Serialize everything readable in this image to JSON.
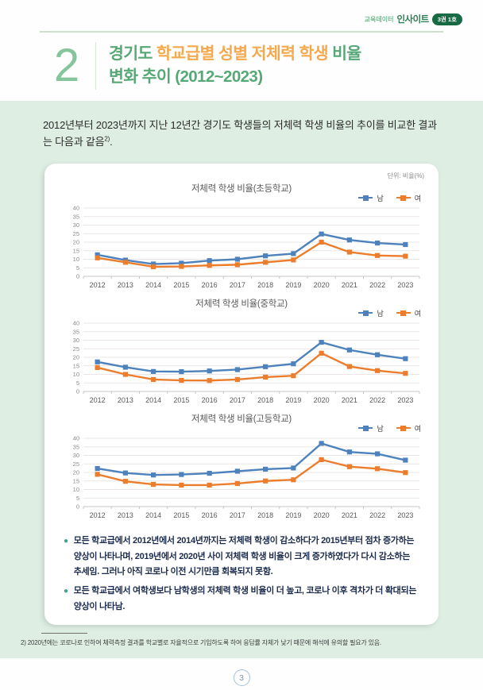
{
  "header": {
    "brand_small": "교육데이터",
    "brand_bold": "인사이트",
    "badge": "3권 1호",
    "section_number": "2",
    "title": {
      "green1": "경기도 ",
      "orange": "학교급별 성별 저체력 학생",
      "green2": " 비율",
      "line2": "변화 추이 (2012~2023)"
    }
  },
  "intro": {
    "text": "2012년부터 2023년까지 지난 12년간 경기도 학생들의 저체력 학생 비율의 추이를 비교한 결과는 다음과 같음",
    "ref": "2)",
    "period": "."
  },
  "card": {
    "unit_label": "단위: 비율(%)"
  },
  "colors": {
    "male_blue": "#4d82bc",
    "female_orange": "#ec7d2d",
    "accent_green": "#57a877",
    "accent_orange": "#f4a94e"
  },
  "chart_data": [
    {
      "type": "line",
      "title": "저체력 학생 비율(초등학교)",
      "x": [
        2012,
        2013,
        2014,
        2015,
        2016,
        2017,
        2018,
        2019,
        2020,
        2021,
        2022,
        2023
      ],
      "ylim": [
        0,
        40
      ],
      "ytick_step": 5,
      "grid": true,
      "legend_position": "top-right",
      "series": [
        {
          "name": "남",
          "color": "#4d82bc",
          "values": [
            12.6,
            9.5,
            7.2,
            7.7,
            9.2,
            10.0,
            12.0,
            13.3,
            24.8,
            21.3,
            19.5,
            18.6
          ]
        },
        {
          "name": "여",
          "color": "#ec7d2d",
          "values": [
            10.8,
            8.2,
            5.6,
            5.8,
            6.4,
            6.8,
            8.2,
            9.6,
            20.0,
            14.2,
            12.2,
            11.8
          ]
        }
      ]
    },
    {
      "type": "line",
      "title": "저체력 학생 비율(중학교)",
      "x": [
        2012,
        2013,
        2014,
        2015,
        2016,
        2017,
        2018,
        2019,
        2020,
        2021,
        2022,
        2023
      ],
      "ylim": [
        0,
        40
      ],
      "ytick_step": 5,
      "grid": true,
      "legend_position": "top-right",
      "series": [
        {
          "name": "남",
          "color": "#4d82bc",
          "values": [
            17.3,
            14.2,
            11.7,
            11.6,
            12.0,
            12.8,
            14.5,
            16.2,
            28.8,
            24.3,
            21.5,
            19.2
          ]
        },
        {
          "name": "여",
          "color": "#ec7d2d",
          "values": [
            14.0,
            10.0,
            7.0,
            6.5,
            6.4,
            7.0,
            8.4,
            9.2,
            22.4,
            14.6,
            12.2,
            10.6
          ]
        }
      ]
    },
    {
      "type": "line",
      "title": "저체력 학생 비율(고등학교)",
      "x": [
        2012,
        2013,
        2014,
        2015,
        2016,
        2017,
        2018,
        2019,
        2020,
        2021,
        2022,
        2023
      ],
      "ylim": [
        0,
        40
      ],
      "ytick_step": 5,
      "grid": true,
      "legend_position": "top-right",
      "series": [
        {
          "name": "남",
          "color": "#4d82bc",
          "values": [
            22.3,
            19.7,
            18.5,
            18.8,
            19.5,
            20.7,
            21.9,
            22.6,
            37.0,
            32.0,
            30.9,
            27.2
          ]
        },
        {
          "name": "여",
          "color": "#ec7d2d",
          "values": [
            18.9,
            14.8,
            13.0,
            12.6,
            12.6,
            13.5,
            15.0,
            15.7,
            27.5,
            23.4,
            22.2,
            19.9
          ]
        }
      ]
    }
  ],
  "bullets": [
    "모든 학교급에서 2012년에서 2014년까지는 저체력 학생이 감소하다가 2015년부터 점차 증가하는 양상이 나타나며, 2019년에서 2020년 사이 저체력 학생 비율이 크게 증가하였다가 다시 감소하는 추세임. 그러나 아직 코로나 이전 시기만큼 회복되지 못함.",
    "모든 학교급에서 여학생보다 남학생의 저체력 학생 비율이 더 높고, 코로나 이후 격차가 더 확대되는 양상이 나타남."
  ],
  "footnote": "2) 2020년에는 코로나로 인하여 체력측정 결과를 학교별로 자율적으로 기입하도록 하여 응답률 자체가 낮기 때문에 해석에 유의할 필요가 있음.",
  "page_number": "3"
}
